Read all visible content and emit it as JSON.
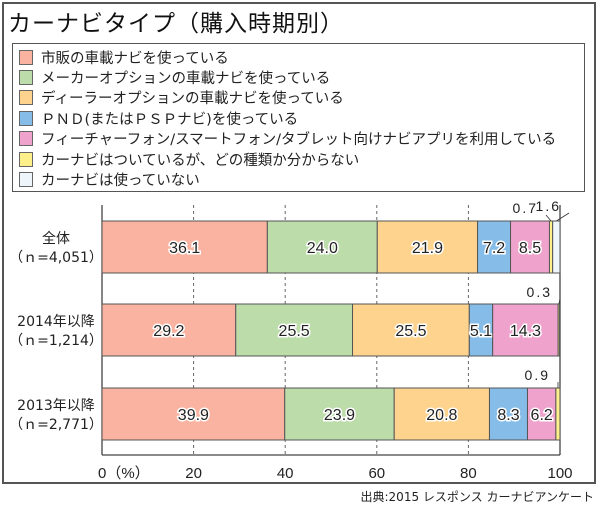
{
  "chart_data": {
    "type": "bar",
    "orientation": "horizontal",
    "stacked": true,
    "title": "カーナビタイプ（購入時期別）",
    "categories": [
      "全体",
      "2014年以降",
      "2013年以降"
    ],
    "category_sublabels": [
      "（ｎ=4,051）",
      "（ｎ=1,214）",
      "（ｎ=2,771）"
    ],
    "series": [
      {
        "name": "市販の車載ナビを使っている",
        "color": "#f9b3a0",
        "values": [
          36.1,
          29.2,
          39.9
        ]
      },
      {
        "name": "メーカーオプションの車載ナビを使っている",
        "color": "#bcdcaa",
        "values": [
          24.0,
          25.5,
          23.9
        ]
      },
      {
        "name": "ディーラーオプションの車載ナビを使っている",
        "color": "#fdd38e",
        "values": [
          21.9,
          25.5,
          20.8
        ]
      },
      {
        "name": "ＰＮＤ(またはＰＳＰナビ)を使っている",
        "color": "#86bde8",
        "values": [
          7.2,
          5.1,
          8.3
        ]
      },
      {
        "name": "フィーチャーフォン/スマートフォン/タブレット向けナビアプリを利用している",
        "color": "#eea2cc",
        "values": [
          8.5,
          14.3,
          6.2
        ]
      },
      {
        "name": "カーナビはついているが、どの種類か分からない",
        "color": "#fdf08a",
        "values": [
          0.7,
          0.3,
          0.9
        ]
      },
      {
        "name": "カーナビは使っていない",
        "color": "#eef5fb",
        "values": [
          1.6,
          0.0,
          0.0
        ]
      }
    ],
    "data_labels": [
      [
        "36.1",
        "24.0",
        "21.9",
        "7.2",
        "8.5",
        "0.7",
        "1.6"
      ],
      [
        "29.2",
        "25.5",
        "25.5",
        "5.1",
        "14.3",
        "0.3",
        ""
      ],
      [
        "39.9",
        "23.9",
        "20.8",
        "8.3",
        "6.2",
        "0.9",
        ""
      ]
    ],
    "xlabel": "（%）",
    "ylabel": "",
    "xlim": [
      0,
      100
    ],
    "xticks": [
      0,
      20,
      40,
      60,
      80,
      100
    ],
    "xtick_labels": [
      "0（%）",
      "20",
      "40",
      "60",
      "80",
      "100"
    ],
    "grid": "vertical dashed at ticks",
    "legend_position": "top"
  },
  "source": "出典:2015 レスポンス カーナビアンケート"
}
